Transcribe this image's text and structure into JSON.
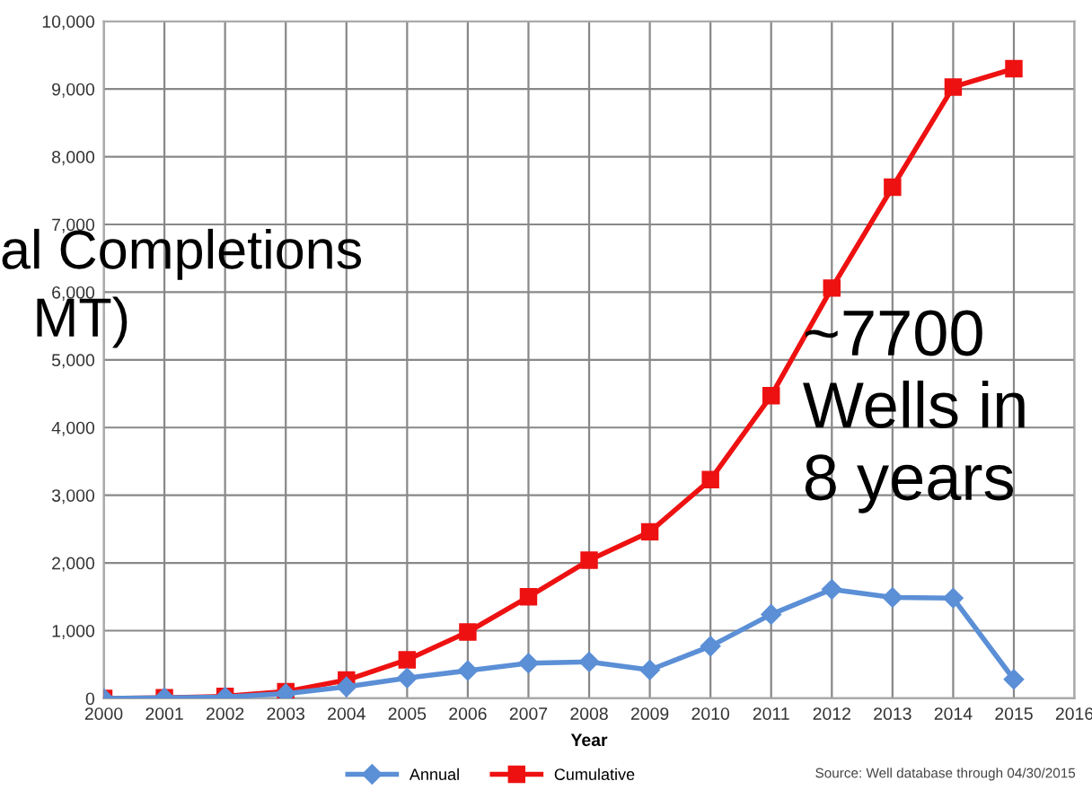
{
  "chart_data": {
    "type": "line",
    "xlabel": "Year",
    "x": [
      2000,
      2001,
      2002,
      2003,
      2004,
      2005,
      2006,
      2007,
      2008,
      2009,
      2010,
      2011,
      2012,
      2013,
      2014,
      2015
    ],
    "series": [
      {
        "name": "Annual",
        "color": "#5b8fd6",
        "marker": "diamond",
        "values": [
          0,
          10,
          20,
          70,
          170,
          300,
          410,
          520,
          540,
          420,
          770,
          1240,
          1610,
          1490,
          1480,
          280
        ]
      },
      {
        "name": "Cumulative",
        "color": "#ee1111",
        "marker": "square",
        "values": [
          0,
          10,
          30,
          100,
          270,
          570,
          980,
          1500,
          2040,
          2460,
          3230,
          4470,
          6060,
          7550,
          9030,
          9300
        ]
      }
    ],
    "xlim": [
      2000,
      2016
    ],
    "xticks": [
      2000,
      2001,
      2002,
      2003,
      2004,
      2005,
      2006,
      2007,
      2008,
      2009,
      2010,
      2011,
      2012,
      2013,
      2014,
      2015,
      2016
    ],
    "ylim": [
      0,
      10000
    ],
    "yticks": [
      0,
      {
        "value": 1000,
        "label": "1,000"
      },
      {
        "value": 2000,
        "label": "2,000"
      },
      {
        "value": 3000,
        "label": "3,000"
      },
      {
        "value": 4000,
        "label": "4,000"
      },
      {
        "value": 5000,
        "label": "5,000"
      },
      {
        "value": 6000,
        "label": "6,000"
      },
      {
        "value": 7000,
        "label": "7,000"
      },
      {
        "value": 8000,
        "label": "8,000"
      },
      {
        "value": 9000,
        "label": "9,000"
      },
      {
        "value": 10000,
        "label": "10,000"
      }
    ],
    "grid": true,
    "legend": "bottom",
    "line_style": "solid",
    "annotations": [
      "al Completions",
      "MT)",
      "~7700\nWells in\n8 years",
      "Source: Well database through 04/30/2015"
    ]
  }
}
